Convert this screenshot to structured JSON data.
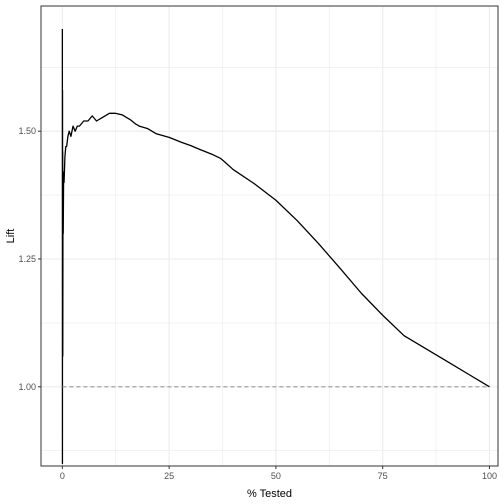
{
  "chart_data": {
    "type": "line",
    "title": "",
    "xlabel": "% Tested",
    "ylabel": "Lift",
    "xlim": [
      -5,
      102
    ],
    "ylim": [
      0.845,
      1.745
    ],
    "x_ticks": [
      0,
      25,
      50,
      75,
      100
    ],
    "x_tick_labels": [
      "0",
      "25",
      "50",
      "75",
      "100"
    ],
    "y_ticks": [
      1.0,
      1.25,
      1.5
    ],
    "y_tick_labels": [
      "1.00",
      "1.25",
      "1.50"
    ],
    "grid": true,
    "legend": "none",
    "colors": {
      "line": "#000000",
      "reference": "#999999",
      "grid": "#ebebeb",
      "panel_border": "#333333"
    },
    "series": [
      {
        "style": "solid",
        "x": [
          0.0,
          0.02,
          0.04,
          0.06,
          0.08,
          0.1,
          0.15,
          0.2,
          0.3,
          0.4,
          0.6,
          0.8,
          1.0,
          1.3,
          1.6,
          2.0,
          2.5,
          3.0,
          3.5,
          4.0,
          5.0,
          6.0,
          7.0,
          8.0,
          9.0,
          10.0,
          11.0,
          12.0,
          12.5,
          13.0,
          14.0,
          15.0,
          16.0,
          17.0,
          18.0,
          20.0,
          22.0,
          25.0,
          28.0,
          30.0,
          32.0,
          35.0,
          37.0,
          38.0,
          40.0,
          45.0,
          50.0,
          55.0,
          60.0,
          65.0,
          70.0,
          75.0,
          80.0,
          85.0,
          90.0,
          95.0,
          100.0
        ],
        "y": [
          1.7,
          0.85,
          1.58,
          1.12,
          1.46,
          1.06,
          1.4,
          1.3,
          1.42,
          1.4,
          1.45,
          1.47,
          1.47,
          1.49,
          1.5,
          1.49,
          1.51,
          1.5,
          1.51,
          1.51,
          1.52,
          1.52,
          1.53,
          1.52,
          1.525,
          1.53,
          1.535,
          1.535,
          1.535,
          1.534,
          1.532,
          1.527,
          1.522,
          1.515,
          1.51,
          1.505,
          1.495,
          1.488,
          1.478,
          1.472,
          1.465,
          1.455,
          1.447,
          1.44,
          1.425,
          1.397,
          1.365,
          1.325,
          1.28,
          1.232,
          1.183,
          1.14,
          1.1,
          1.075,
          1.05,
          1.025,
          1.0
        ]
      },
      {
        "style": "dashed",
        "x": [
          0,
          100
        ],
        "y": [
          1.0,
          1.0
        ]
      }
    ]
  }
}
